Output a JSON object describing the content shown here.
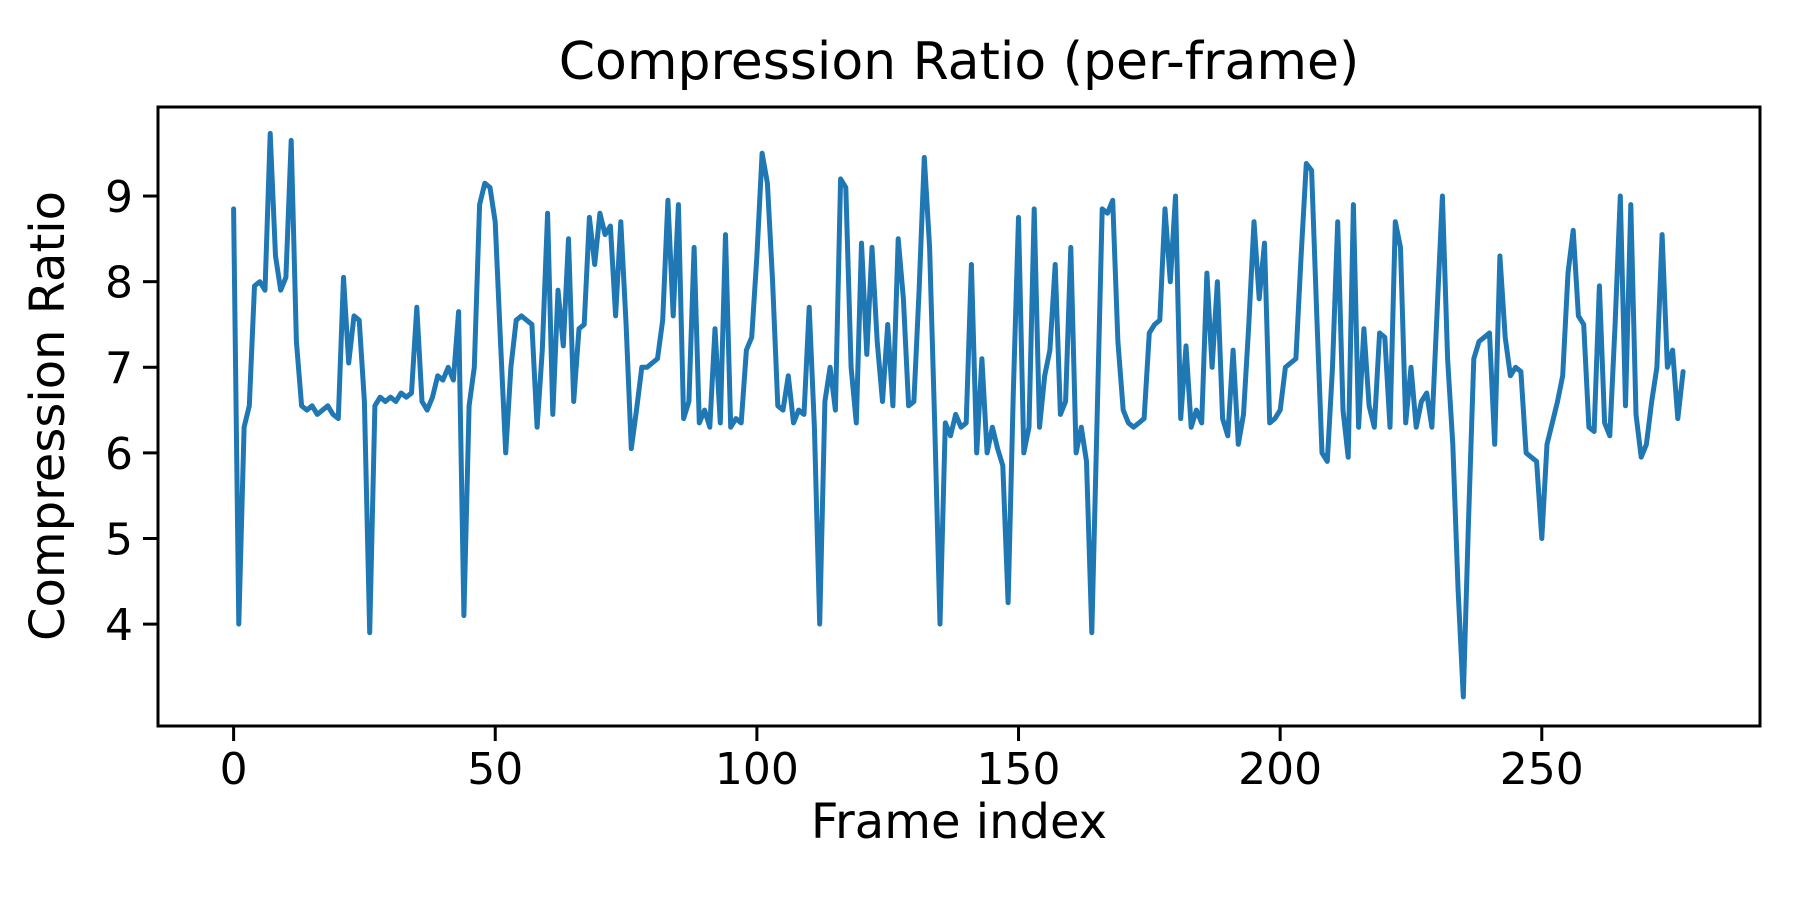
{
  "chart_data": {
    "type": "line",
    "title": "Compression Ratio (per-frame)",
    "xlabel": "Frame index",
    "ylabel": "Compression Ratio",
    "legend": "none",
    "grid": false,
    "line_color": "#1f77b4",
    "spine_color": "#000000",
    "background_color": "#ffffff",
    "xticks": [
      0,
      50,
      100,
      150,
      200,
      250
    ],
    "yticks": [
      4,
      5,
      6,
      7,
      8,
      9
    ],
    "xlim": [
      -14.45,
      291.7
    ],
    "ylim": [
      2.81,
      10.04
    ],
    "x_start": 0,
    "x_step": 1,
    "values": [
      8.85,
      4.0,
      6.3,
      6.55,
      7.95,
      8.0,
      7.9,
      9.73,
      8.3,
      7.9,
      8.05,
      9.65,
      7.3,
      6.55,
      6.5,
      6.55,
      6.45,
      6.5,
      6.55,
      6.45,
      6.4,
      8.05,
      7.05,
      7.6,
      7.55,
      6.6,
      3.9,
      6.55,
      6.65,
      6.6,
      6.65,
      6.6,
      6.7,
      6.65,
      6.7,
      7.7,
      6.6,
      6.5,
      6.65,
      6.9,
      6.85,
      7.0,
      6.85,
      7.65,
      4.1,
      6.55,
      7.0,
      8.9,
      9.15,
      9.1,
      8.7,
      7.3,
      6.0,
      7.0,
      7.55,
      7.6,
      7.55,
      7.5,
      6.3,
      7.2,
      8.8,
      6.45,
      7.9,
      7.25,
      8.5,
      6.6,
      7.45,
      7.5,
      8.75,
      8.2,
      8.8,
      8.55,
      8.65,
      7.6,
      8.7,
      7.5,
      6.05,
      6.5,
      7.0,
      7.0,
      7.05,
      7.1,
      7.55,
      8.95,
      7.6,
      8.9,
      6.4,
      6.6,
      8.4,
      6.35,
      6.5,
      6.3,
      7.45,
      6.35,
      8.55,
      6.3,
      6.4,
      6.35,
      7.2,
      7.35,
      8.3,
      9.5,
      9.15,
      8.0,
      6.55,
      6.5,
      6.9,
      6.35,
      6.5,
      6.45,
      7.7,
      6.3,
      4.0,
      6.6,
      7.0,
      6.5,
      9.2,
      9.1,
      7.0,
      6.35,
      8.45,
      7.15,
      8.4,
      7.3,
      6.6,
      7.5,
      6.55,
      8.5,
      7.8,
      6.55,
      6.6,
      7.9,
      9.45,
      8.4,
      6.3,
      4.0,
      6.35,
      6.2,
      6.45,
      6.3,
      6.35,
      8.2,
      6.0,
      7.1,
      6.0,
      6.3,
      6.05,
      5.85,
      4.25,
      6.7,
      8.75,
      6.0,
      6.3,
      8.85,
      6.3,
      6.9,
      7.2,
      8.2,
      6.45,
      6.6,
      8.4,
      6.0,
      6.3,
      5.9,
      3.9,
      6.35,
      8.85,
      8.8,
      8.95,
      7.3,
      6.5,
      6.35,
      6.3,
      6.35,
      6.4,
      7.4,
      7.5,
      7.55,
      8.85,
      8.0,
      9.0,
      6.4,
      7.25,
      6.3,
      6.5,
      6.35,
      8.1,
      7.0,
      8.0,
      6.4,
      6.2,
      7.2,
      6.1,
      6.45,
      7.5,
      8.7,
      7.8,
      8.45,
      6.35,
      6.4,
      6.5,
      7.0,
      7.05,
      7.1,
      8.3,
      9.38,
      9.3,
      7.6,
      6.0,
      5.9,
      7.0,
      8.7,
      6.5,
      5.95,
      8.9,
      6.3,
      7.45,
      6.55,
      6.3,
      7.4,
      7.35,
      6.3,
      8.7,
      8.4,
      6.35,
      7.0,
      6.3,
      6.6,
      6.7,
      6.3,
      7.65,
      9.0,
      7.1,
      6.1,
      4.4,
      3.15,
      5.2,
      7.1,
      7.3,
      7.35,
      7.4,
      6.1,
      8.3,
      7.35,
      6.9,
      7.0,
      6.95,
      6.0,
      5.95,
      5.9,
      5.0,
      6.1,
      6.35,
      6.6,
      6.9,
      8.1,
      8.6,
      7.6,
      7.5,
      6.3,
      6.25,
      7.95,
      6.35,
      6.2,
      7.5,
      9.0,
      6.55,
      8.9,
      6.45,
      5.95,
      6.1,
      6.6,
      7.0,
      8.55,
      7.0,
      7.2,
      6.4,
      6.95
    ]
  }
}
